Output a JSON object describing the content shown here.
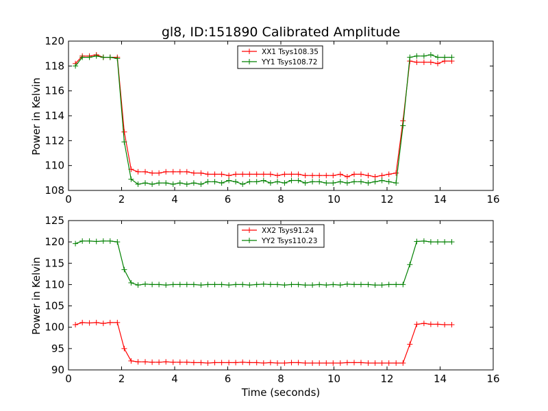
{
  "chart_data": [
    {
      "type": "line",
      "title": "gl8, ID:151890 Calibrated Amplitude",
      "xlabel": "",
      "ylabel": "Power in Kelvin",
      "xlim": [
        0,
        16
      ],
      "ylim": [
        108,
        120
      ],
      "xticks": [
        0,
        2,
        4,
        6,
        8,
        10,
        12,
        14,
        16
      ],
      "yticks": [
        108,
        110,
        112,
        114,
        116,
        118,
        120
      ],
      "legend_position": "upper center",
      "grid": false,
      "x": [
        0.26,
        0.52,
        0.79,
        1.05,
        1.31,
        1.57,
        1.84,
        2.1,
        2.36,
        2.62,
        2.89,
        3.15,
        3.41,
        3.67,
        3.94,
        4.2,
        4.46,
        4.72,
        4.99,
        5.25,
        5.51,
        5.77,
        6.04,
        6.3,
        6.56,
        6.82,
        7.09,
        7.35,
        7.61,
        7.87,
        8.14,
        8.4,
        8.66,
        8.92,
        9.19,
        9.45,
        9.71,
        9.97,
        10.24,
        10.5,
        10.76,
        11.02,
        11.29,
        11.55,
        11.81,
        12.07,
        12.34,
        12.6,
        12.86,
        13.12,
        13.39,
        13.65,
        13.91,
        14.17,
        14.44
      ],
      "series": [
        {
          "name": "XX1 Tsys108.35",
          "color": "#ff0000",
          "values": [
            118.2,
            118.8,
            118.8,
            118.9,
            118.7,
            118.7,
            118.7,
            112.7,
            109.7,
            109.5,
            109.5,
            109.4,
            109.4,
            109.5,
            109.5,
            109.5,
            109.5,
            109.4,
            109.4,
            109.3,
            109.3,
            109.3,
            109.2,
            109.3,
            109.3,
            109.3,
            109.3,
            109.3,
            109.3,
            109.2,
            109.3,
            109.3,
            109.3,
            109.2,
            109.2,
            109.2,
            109.2,
            109.2,
            109.3,
            109.1,
            109.3,
            109.3,
            109.2,
            109.1,
            109.2,
            109.3,
            109.4,
            113.6,
            118.4,
            118.3,
            118.3,
            118.3,
            118.2,
            118.4,
            118.4
          ]
        },
        {
          "name": "YY1 Tsys108.72",
          "color": "#008000",
          "values": [
            118.0,
            118.7,
            118.7,
            118.8,
            118.7,
            118.7,
            118.6,
            111.9,
            108.9,
            108.5,
            108.6,
            108.5,
            108.6,
            108.6,
            108.5,
            108.6,
            108.5,
            108.6,
            108.5,
            108.7,
            108.7,
            108.6,
            108.8,
            108.7,
            108.5,
            108.7,
            108.7,
            108.8,
            108.6,
            108.7,
            108.6,
            108.8,
            108.8,
            108.6,
            108.7,
            108.7,
            108.6,
            108.6,
            108.7,
            108.6,
            108.7,
            108.7,
            108.6,
            108.7,
            108.8,
            108.7,
            108.6,
            113.2,
            118.7,
            118.8,
            118.8,
            118.9,
            118.7,
            118.7,
            118.7
          ]
        }
      ]
    },
    {
      "type": "line",
      "title": "",
      "xlabel": "Time (seconds)",
      "ylabel": "Power in Kelvin",
      "xlim": [
        0,
        16
      ],
      "ylim": [
        90,
        125
      ],
      "xticks": [
        0,
        2,
        4,
        6,
        8,
        10,
        12,
        14,
        16
      ],
      "yticks": [
        90,
        95,
        100,
        105,
        110,
        115,
        120,
        125
      ],
      "legend_position": "upper center",
      "grid": false,
      "x": [
        0.26,
        0.52,
        0.79,
        1.05,
        1.31,
        1.57,
        1.84,
        2.1,
        2.36,
        2.62,
        2.89,
        3.15,
        3.41,
        3.67,
        3.94,
        4.2,
        4.46,
        4.72,
        4.99,
        5.25,
        5.51,
        5.77,
        6.04,
        6.3,
        6.56,
        6.82,
        7.09,
        7.35,
        7.61,
        7.87,
        8.14,
        8.4,
        8.66,
        8.92,
        9.19,
        9.45,
        9.71,
        9.97,
        10.24,
        10.5,
        10.76,
        11.02,
        11.29,
        11.55,
        11.81,
        12.07,
        12.34,
        12.6,
        12.86,
        13.12,
        13.39,
        13.65,
        13.91,
        14.17,
        14.44
      ],
      "series": [
        {
          "name": "XX2 Tsys91.24",
          "color": "#ff0000",
          "values": [
            100.6,
            101.1,
            101.0,
            101.1,
            100.9,
            101.1,
            101.1,
            95.0,
            92.1,
            91.9,
            91.9,
            91.8,
            91.8,
            91.9,
            91.8,
            91.8,
            91.8,
            91.7,
            91.7,
            91.6,
            91.7,
            91.7,
            91.7,
            91.7,
            91.8,
            91.7,
            91.7,
            91.6,
            91.7,
            91.6,
            91.6,
            91.7,
            91.7,
            91.6,
            91.6,
            91.6,
            91.6,
            91.6,
            91.6,
            91.7,
            91.7,
            91.7,
            91.6,
            91.6,
            91.6,
            91.6,
            91.6,
            91.6,
            96.0,
            100.7,
            100.9,
            100.7,
            100.7,
            100.6,
            100.6
          ]
        },
        {
          "name": "YY2 Tsys110.23",
          "color": "#008000",
          "values": [
            119.6,
            120.2,
            120.2,
            120.1,
            120.2,
            120.2,
            120.0,
            113.5,
            110.4,
            109.9,
            110.1,
            110.0,
            110.0,
            109.9,
            110.0,
            110.0,
            110.0,
            110.0,
            109.9,
            110.0,
            110.0,
            110.0,
            109.9,
            110.0,
            110.0,
            109.9,
            110.0,
            110.1,
            110.0,
            110.0,
            109.9,
            110.0,
            110.0,
            109.9,
            109.9,
            110.0,
            109.9,
            110.0,
            109.9,
            110.1,
            110.0,
            110.0,
            110.0,
            109.9,
            109.9,
            110.0,
            110.0,
            110.0,
            114.7,
            120.1,
            120.2,
            120.0,
            120.0,
            120.0,
            120.0
          ]
        }
      ]
    }
  ]
}
